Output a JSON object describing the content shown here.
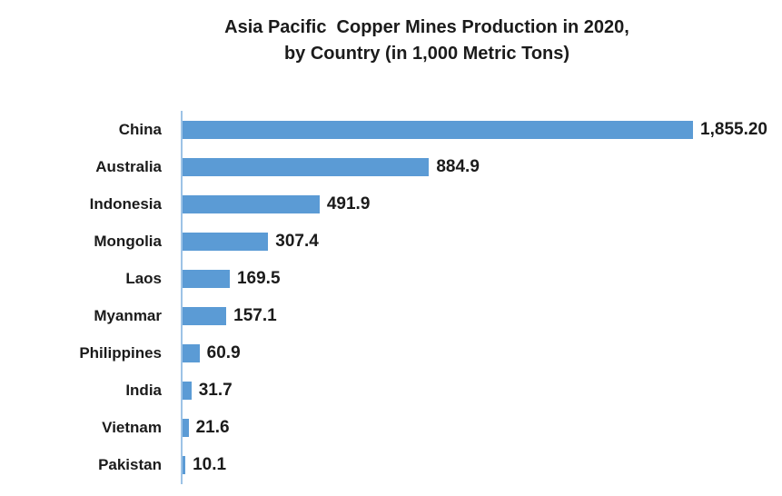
{
  "title": {
    "line1": "Asia Pacific  Copper Mines Production in 2020,",
    "line2": "by Country (in 1,000 Metric Tons)"
  },
  "chart_data": {
    "type": "bar",
    "orientation": "horizontal",
    "title": "Asia Pacific Copper Mines Production in 2020, by Country (in 1,000 Metric Tons)",
    "categories": [
      "China",
      "Australia",
      "Indonesia",
      "Mongolia",
      "Laos",
      "Myanmar",
      "Philippines",
      "India",
      "Vietnam",
      "Pakistan"
    ],
    "values": [
      1855.2,
      884.9,
      491.9,
      307.4,
      169.5,
      157.1,
      60.9,
      31.7,
      21.6,
      10.1
    ],
    "value_labels": [
      "1,855.20",
      "884.9",
      "491.9",
      "307.4",
      "169.5",
      "157.1",
      "60.9",
      "31.7",
      "21.6",
      "10.1"
    ],
    "xlabel": "",
    "ylabel": "",
    "xlim": [
      0,
      2100
    ],
    "grid": false,
    "legend": "none",
    "bar_color": "#5B9BD5"
  },
  "colors": {
    "bar": "#5B9BD5",
    "text": "#1b1b1b",
    "axis_line": "#9DC3E6",
    "background": "#ffffff"
  }
}
